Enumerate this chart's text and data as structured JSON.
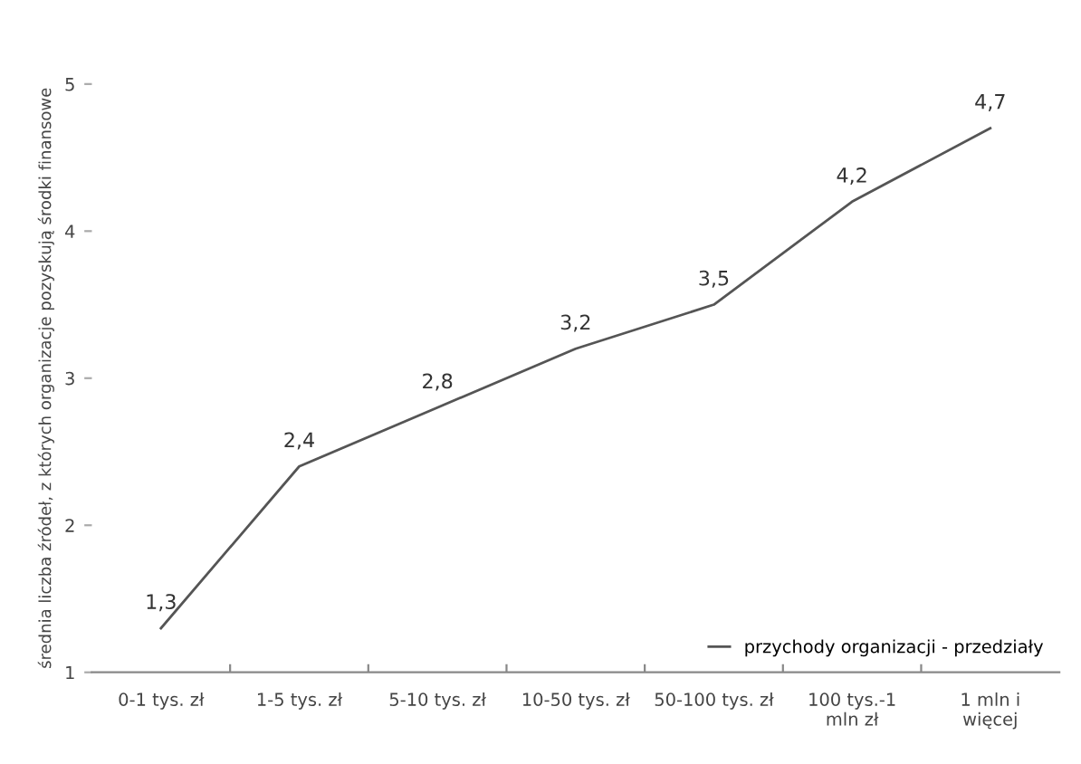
{
  "chart_data": {
    "type": "line",
    "categories": [
      "0-1 tys. zł",
      "1-5 tys. zł",
      "5-10 tys. zł",
      "10-50 tys. zł",
      "50-100 tys. zł",
      "100 tys.-1\nmln zł",
      "1 mln i\nwięcej"
    ],
    "series": [
      {
        "name": "przychody organizacji - przedziały",
        "color": "#555555",
        "values": [
          1.3,
          2.4,
          2.8,
          3.2,
          3.5,
          4.2,
          4.7
        ],
        "value_labels": [
          "1,3",
          "2,4",
          "2,8",
          "3,2",
          "3,5",
          "4,2",
          "4,7"
        ]
      }
    ],
    "ylabel": "średnia liczba źródeł, z których organizacje pozyskują środki finansowe",
    "ylim": [
      1,
      5
    ],
    "yticks": [
      1,
      2,
      3,
      4,
      5
    ],
    "grid": false,
    "legend": "bottom right",
    "marker": "none",
    "line_style": "solid"
  }
}
